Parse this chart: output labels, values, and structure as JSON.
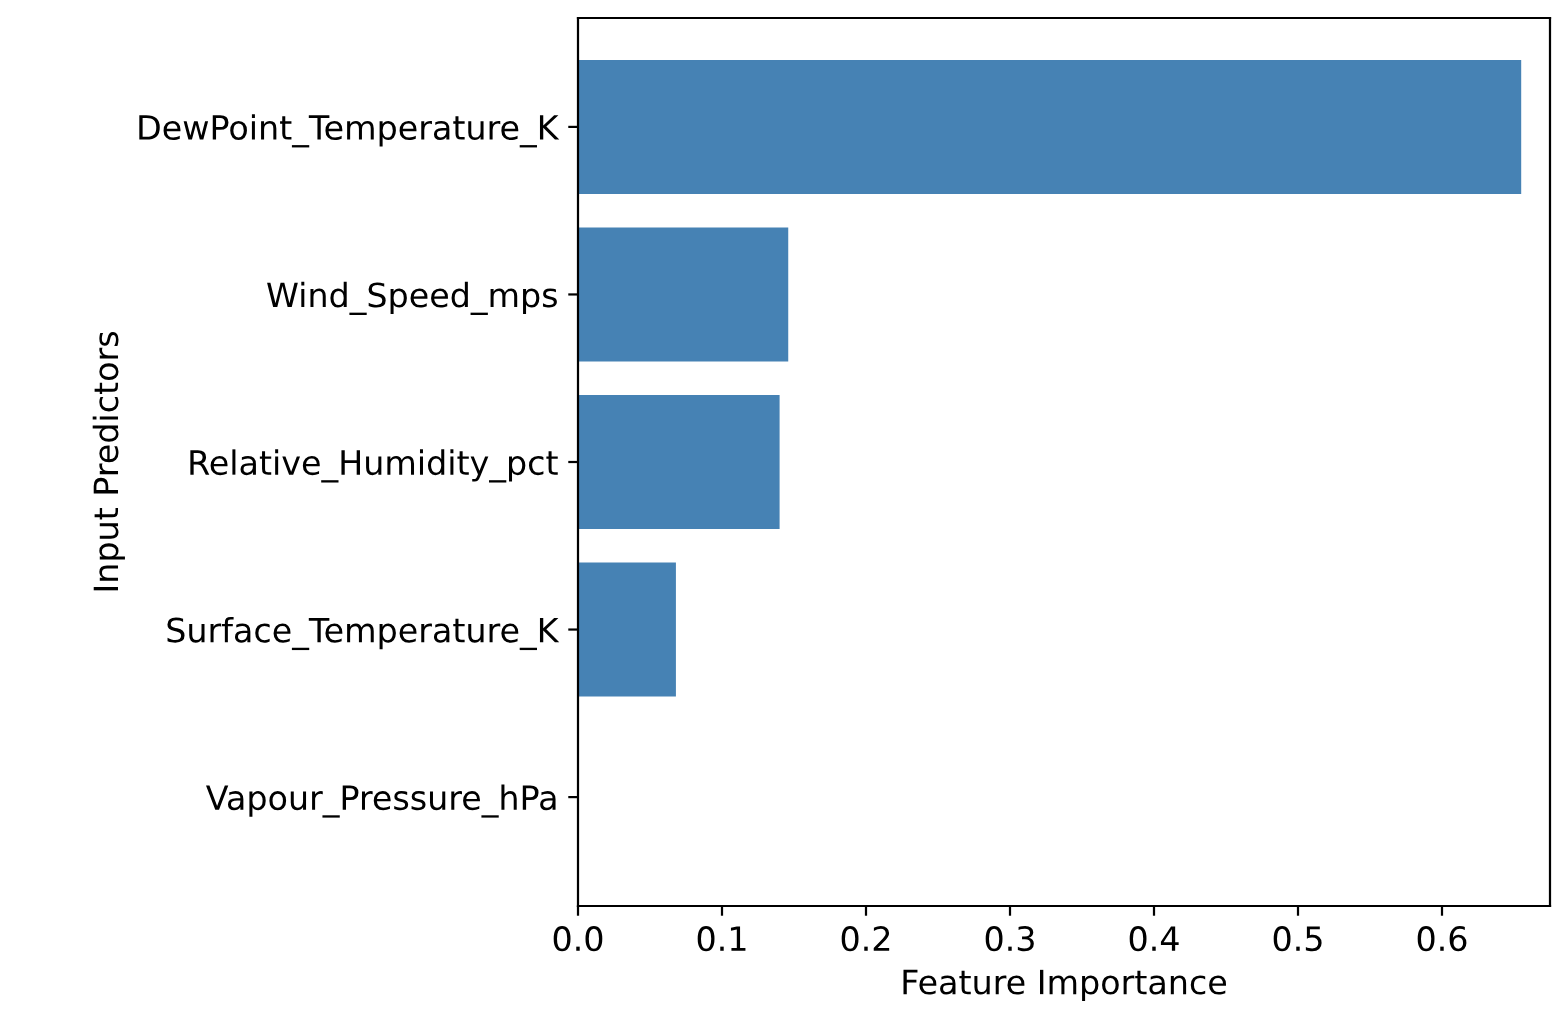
{
  "chart_data": {
    "type": "bar",
    "orientation": "horizontal",
    "xlabel": "Feature Importance",
    "ylabel": "Input Predictors",
    "categories": [
      "DewPoint_Temperature_K",
      "Wind_Speed_mps",
      "Relative_Humidity_pct",
      "Surface_Temperature_K",
      "Vapour_Pressure_hPa"
    ],
    "values": [
      0.655,
      0.146,
      0.14,
      0.068,
      0
    ],
    "color": "#4682b4",
    "xlim": [
      0,
      0.675
    ],
    "xticks": [
      {
        "value": 0,
        "label": "0.0"
      },
      0.1,
      0.2,
      0.3,
      0.4,
      0.5,
      0.6
    ],
    "grid": false
  }
}
